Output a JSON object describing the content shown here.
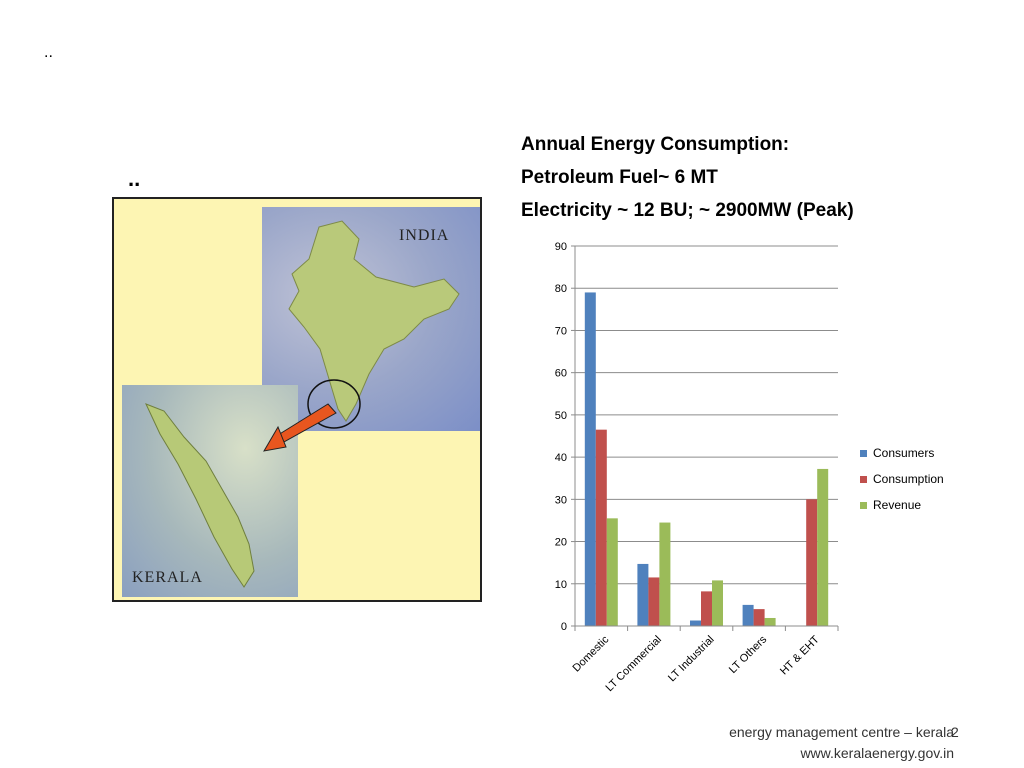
{
  "slide": {
    "dots_top": "..",
    "dots_mid": "..",
    "heading_lines": [
      "Annual Energy Consumption:",
      "Petroleum Fuel~ 6 MT",
      "Electricity ~ 12 BU; ~ 2900MW (Peak)"
    ],
    "footer_line1": "energy management centre – kerala",
    "footer_line2": "www.keralaenergy.gov.in",
    "page_number": "2"
  },
  "map": {
    "india_label": "INDIA",
    "kerala_label": "KERALA",
    "arrow_color": "#e8561f"
  },
  "chart_data": {
    "type": "bar",
    "categories": [
      "Domestic",
      "LT Commercial",
      "LT Industrial",
      "LT Others",
      "HT & EHT"
    ],
    "series": [
      {
        "name": "Consumers",
        "color": "#4f81bd",
        "values": [
          79,
          14.7,
          1.3,
          5,
          0
        ]
      },
      {
        "name": "Consumption",
        "color": "#c0504d",
        "values": [
          46.5,
          11.5,
          8.2,
          4,
          30
        ]
      },
      {
        "name": "Revenue",
        "color": "#9bbb59",
        "values": [
          25.5,
          24.5,
          10.8,
          1.9,
          37.2
        ]
      }
    ],
    "ylim": [
      0,
      90
    ],
    "yticks": [
      "0",
      "10",
      "20",
      "30",
      "40",
      "50",
      "60",
      "70",
      "80",
      "90"
    ],
    "grid": true,
    "legend_position": "right"
  }
}
